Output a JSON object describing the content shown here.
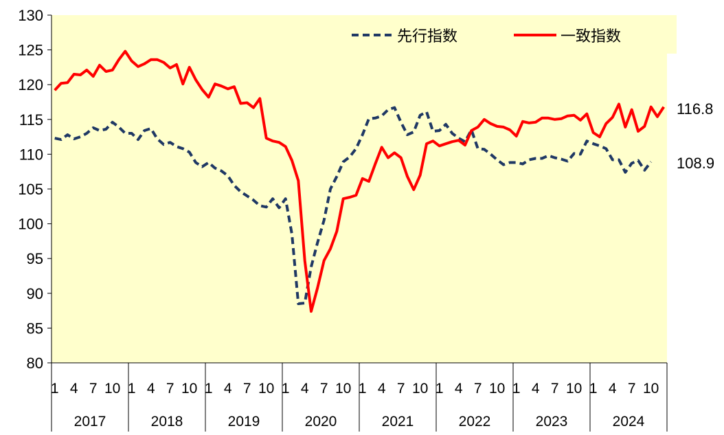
{
  "chart_data": {
    "type": "line",
    "title": "",
    "xlabel": "",
    "ylabel": "",
    "ylim": [
      80,
      130
    ],
    "yticks": [
      "80",
      "85",
      "90",
      "95",
      "100",
      "105",
      "110",
      "115",
      "120",
      "125",
      "130"
    ],
    "x_month_ticks": [
      "1",
      "4",
      "7",
      "10"
    ],
    "years": [
      "2017",
      "2018",
      "2019",
      "2020",
      "2021",
      "2022",
      "2023",
      "2024"
    ],
    "grid": false,
    "legend_position": "top-right",
    "colors": {
      "plot_bg": "#FFFFCC",
      "leading": "#1F3864",
      "coincident": "#FF0000"
    },
    "series": [
      {
        "name": "先行指数",
        "style": "dashed",
        "end_label": "108.9",
        "values": [
          112.3,
          112.1,
          112.8,
          112.2,
          112.5,
          113.0,
          113.8,
          113.4,
          113.6,
          114.6,
          113.9,
          113.0,
          113.0,
          112.1,
          113.4,
          113.7,
          112.2,
          111.4,
          111.7,
          111.1,
          110.8,
          110.3,
          108.8,
          108.2,
          108.8,
          108.0,
          107.6,
          106.9,
          105.5,
          104.6,
          104.0,
          103.4,
          102.6,
          102.4,
          103.6,
          102.3,
          103.6,
          98.5,
          88.5,
          88.6,
          93.8,
          97.3,
          100.5,
          105.0,
          106.8,
          108.9,
          109.6,
          110.8,
          112.8,
          115.1,
          115.2,
          115.5,
          116.4,
          116.7,
          114.6,
          112.8,
          113.2,
          115.6,
          116.1,
          113.3,
          113.4,
          114.3,
          113.0,
          112.3,
          111.8,
          113.5,
          110.8,
          110.7,
          110.0,
          109.2,
          108.5,
          108.8,
          108.8,
          108.6,
          109.2,
          109.4,
          109.4,
          109.8,
          109.5,
          109.3,
          109.0,
          110.1,
          110.0,
          111.9,
          111.5,
          111.2,
          110.8,
          109.2,
          109.2,
          107.4,
          108.7,
          109.1,
          107.7,
          108.9
        ]
      },
      {
        "name": "一致指数",
        "style": "solid",
        "end_label": "116.8",
        "values": [
          119.2,
          120.2,
          120.3,
          121.5,
          121.4,
          122.1,
          121.2,
          122.8,
          121.9,
          122.1,
          123.6,
          124.8,
          123.4,
          122.6,
          123.0,
          123.6,
          123.6,
          123.2,
          122.4,
          122.9,
          120.1,
          122.5,
          120.7,
          119.3,
          118.2,
          120.1,
          119.8,
          119.4,
          119.7,
          117.3,
          117.4,
          116.7,
          118.0,
          112.3,
          111.9,
          111.7,
          111.1,
          109.1,
          106.2,
          94.7,
          87.4,
          90.8,
          94.7,
          96.4,
          98.9,
          103.6,
          103.8,
          104.1,
          106.5,
          106.1,
          108.6,
          111.0,
          109.5,
          110.2,
          109.5,
          106.8,
          104.9,
          107.0,
          111.5,
          111.9,
          111.2,
          111.5,
          111.8,
          112.0,
          111.3,
          113.4,
          113.9,
          115.0,
          114.4,
          114.0,
          113.9,
          113.5,
          112.6,
          114.7,
          114.5,
          114.6,
          115.2,
          115.2,
          115.0,
          115.1,
          115.5,
          115.6,
          114.9,
          115.8,
          113.1,
          112.5,
          114.4,
          115.3,
          117.2,
          113.9,
          116.4,
          113.3,
          114.0,
          116.8,
          115.4,
          116.8
        ]
      }
    ]
  }
}
